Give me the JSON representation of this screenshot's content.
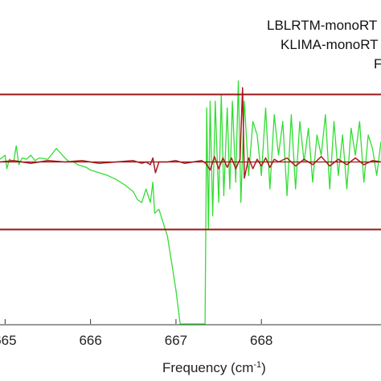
{
  "chart_data": {
    "type": "line",
    "xlabel_main": "Frequency (cm",
    "xlabel_sup": "-1",
    "xlabel_close": ")",
    "x_ticks": [
      665,
      666,
      667,
      668
    ],
    "x_tick_labels": [
      "665",
      "666",
      "667",
      "668"
    ],
    "xlim": [
      664.94,
      669.4
    ],
    "ylim": [
      -1.2,
      1.2
    ],
    "grid": false,
    "legend_placement": "top-right",
    "legend_entries": [
      "LBLRTM-monoRT",
      "KLIMA-monoRT",
      "F"
    ],
    "threshold_lines": [
      0.5,
      0.0,
      -0.5
    ],
    "series": [
      {
        "name": "KLIMA-monoRT",
        "color": "#33dd33",
        "x": [
          664.94,
          665.0,
          665.02,
          665.05,
          665.1,
          665.13,
          665.16,
          665.2,
          665.25,
          665.3,
          665.35,
          665.4,
          665.5,
          665.6,
          665.7,
          665.75,
          665.8,
          665.85,
          665.9,
          665.95,
          666.0,
          666.1,
          666.2,
          666.3,
          666.4,
          666.5,
          666.55,
          666.6,
          666.65,
          666.7,
          666.73,
          666.75,
          666.8,
          666.85,
          666.9,
          666.95,
          667.0,
          667.05,
          667.1,
          667.15,
          667.18,
          667.2,
          667.25,
          667.3,
          667.32,
          667.34,
          667.36,
          667.38,
          667.4,
          667.43,
          667.46,
          667.5,
          667.53,
          667.56,
          667.6,
          667.63,
          667.66,
          667.7,
          667.73,
          667.76,
          667.8,
          667.85,
          667.9,
          667.95,
          668.0,
          668.05,
          668.1,
          668.15,
          668.2,
          668.25,
          668.3,
          668.35,
          668.4,
          668.45,
          668.5,
          668.55,
          668.6,
          668.65,
          668.7,
          668.75,
          668.8,
          668.85,
          668.9,
          668.95,
          669.0,
          669.05,
          669.1,
          669.15,
          669.2,
          669.25,
          669.3,
          669.35,
          669.4
        ],
        "values": [
          0.02,
          0.05,
          -0.05,
          0.02,
          0.0,
          0.12,
          -0.02,
          0.03,
          0.02,
          0.05,
          0.01,
          0.03,
          0.02,
          0.1,
          0.03,
          0.0,
          0.0,
          -0.02,
          -0.03,
          -0.04,
          -0.06,
          -0.08,
          -0.1,
          -0.13,
          -0.17,
          -0.22,
          -0.28,
          -0.3,
          -0.2,
          -0.3,
          -0.15,
          -0.38,
          -0.35,
          -0.45,
          -0.55,
          -0.75,
          -0.95,
          -1.2,
          -1.2,
          -1.2,
          -1.2,
          -1.2,
          -1.2,
          -1.2,
          -1.2,
          -1.2,
          0.4,
          -0.5,
          0.45,
          -0.4,
          0.45,
          -0.3,
          0.5,
          -0.25,
          0.4,
          -0.2,
          0.45,
          -0.15,
          0.6,
          -0.3,
          0.45,
          -0.1,
          0.3,
          0.2,
          -0.1,
          0.4,
          -0.2,
          0.35,
          0.05,
          0.3,
          -0.25,
          0.35,
          -0.2,
          0.3,
          0.0,
          0.25,
          -0.15,
          0.2,
          0.05,
          0.35,
          -0.2,
          0.3,
          -0.1,
          0.2,
          -0.2,
          0.25,
          0.05,
          0.3,
          -0.15,
          0.2,
          0.1,
          -0.1,
          0.15
        ]
      },
      {
        "name": "LBLRTM-monoRT",
        "color": "#aa1a1a",
        "x": [
          664.94,
          665.1,
          665.3,
          665.5,
          665.7,
          665.9,
          666.1,
          666.3,
          666.5,
          666.6,
          666.65,
          666.7,
          666.73,
          666.76,
          666.8,
          666.9,
          667.0,
          667.1,
          667.2,
          667.3,
          667.35,
          667.4,
          667.45,
          667.5,
          667.55,
          667.6,
          667.65,
          667.7,
          667.75,
          667.78,
          667.8,
          667.85,
          667.9,
          667.95,
          668.0,
          668.05,
          668.1,
          668.15,
          668.2,
          668.3,
          668.4,
          668.5,
          668.6,
          668.7,
          668.8,
          668.9,
          669.0,
          669.1,
          669.2,
          669.3,
          669.4
        ],
        "values": [
          0.0,
          0.01,
          -0.01,
          0.01,
          0.0,
          0.01,
          -0.01,
          0.0,
          0.01,
          -0.01,
          0.0,
          -0.02,
          0.03,
          -0.08,
          0.0,
          0.0,
          0.01,
          -0.01,
          0.0,
          0.01,
          -0.01,
          -0.06,
          0.04,
          -0.05,
          0.03,
          -0.04,
          0.03,
          -0.05,
          0.02,
          0.55,
          -0.12,
          0.03,
          -0.05,
          0.02,
          -0.03,
          0.03,
          -0.04,
          0.02,
          0.0,
          0.03,
          -0.03,
          0.02,
          -0.02,
          0.04,
          -0.03,
          0.02,
          -0.02,
          0.03,
          -0.02,
          0.01,
          0.0
        ]
      }
    ]
  }
}
